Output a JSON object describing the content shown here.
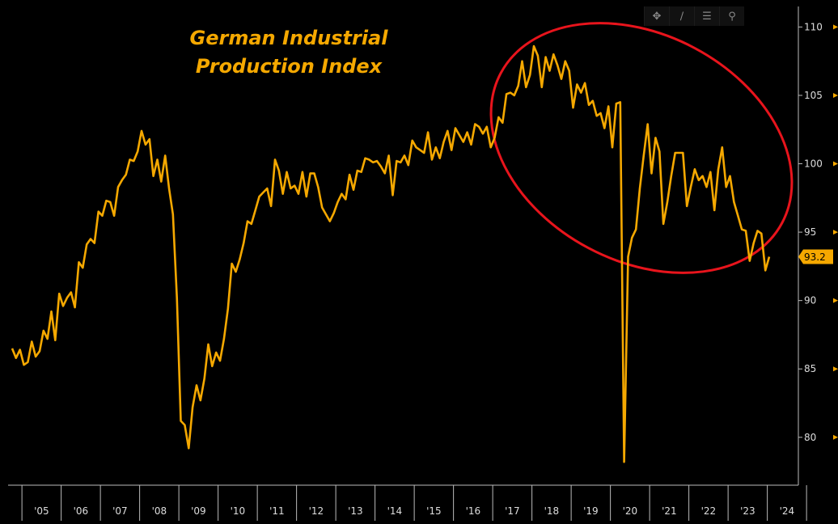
{
  "chart_data": {
    "type": "line",
    "title": "German Industrial Production Index",
    "title_lines": [
      "German Industrial",
      "Production Index"
    ],
    "xlabel": "",
    "ylabel": "",
    "ylim": [
      76.5,
      111.5
    ],
    "xlim": [
      2004.75,
      2024.75
    ],
    "y_ticks": [
      80,
      85,
      90,
      95,
      100,
      105,
      110
    ],
    "x_tick_labels": [
      "'05",
      "'06",
      "'07",
      "'08",
      "'09",
      "'10",
      "'11",
      "'12",
      "'13",
      "'14",
      "'15",
      "'16",
      "'17",
      "'18",
      "'19",
      "'20",
      "'21",
      "'22",
      "'23",
      "'24"
    ],
    "last_value_label": "93.2",
    "line_color": "#f5a800",
    "annotation": {
      "type": "ellipse",
      "color": "#e8141c",
      "description": "highlights decline since 2018"
    },
    "series": [
      {
        "name": "German Industrial Production Index",
        "points": [
          [
            2004.75,
            86.5
          ],
          [
            2004.85,
            85.8
          ],
          [
            2004.95,
            86.4
          ],
          [
            2005.05,
            85.3
          ],
          [
            2005.15,
            85.5
          ],
          [
            2005.25,
            87.0
          ],
          [
            2005.35,
            85.9
          ],
          [
            2005.45,
            86.3
          ],
          [
            2005.55,
            87.8
          ],
          [
            2005.65,
            87.2
          ],
          [
            2005.75,
            89.2
          ],
          [
            2005.85,
            87.1
          ],
          [
            2005.95,
            90.5
          ],
          [
            2006.05,
            89.6
          ],
          [
            2006.15,
            90.2
          ],
          [
            2006.25,
            90.6
          ],
          [
            2006.35,
            89.5
          ],
          [
            2006.45,
            92.8
          ],
          [
            2006.55,
            92.4
          ],
          [
            2006.65,
            94.1
          ],
          [
            2006.75,
            94.5
          ],
          [
            2006.85,
            94.2
          ],
          [
            2006.95,
            96.5
          ],
          [
            2007.05,
            96.2
          ],
          [
            2007.15,
            97.3
          ],
          [
            2007.25,
            97.2
          ],
          [
            2007.35,
            96.2
          ],
          [
            2007.45,
            98.3
          ],
          [
            2007.55,
            98.8
          ],
          [
            2007.65,
            99.2
          ],
          [
            2007.75,
            100.3
          ],
          [
            2007.85,
            100.2
          ],
          [
            2007.95,
            100.9
          ],
          [
            2008.05,
            102.4
          ],
          [
            2008.15,
            101.4
          ],
          [
            2008.25,
            101.8
          ],
          [
            2008.35,
            99.1
          ],
          [
            2008.45,
            100.3
          ],
          [
            2008.55,
            98.7
          ],
          [
            2008.65,
            100.6
          ],
          [
            2008.75,
            98.2
          ],
          [
            2008.85,
            96.3
          ],
          [
            2008.95,
            90.2
          ],
          [
            2009.05,
            81.2
          ],
          [
            2009.15,
            80.9
          ],
          [
            2009.25,
            79.2
          ],
          [
            2009.35,
            82.2
          ],
          [
            2009.45,
            83.8
          ],
          [
            2009.55,
            82.7
          ],
          [
            2009.65,
            84.3
          ],
          [
            2009.75,
            86.8
          ],
          [
            2009.85,
            85.2
          ],
          [
            2009.95,
            86.2
          ],
          [
            2010.05,
            85.6
          ],
          [
            2010.15,
            87.2
          ],
          [
            2010.25,
            89.4
          ],
          [
            2010.35,
            92.7
          ],
          [
            2010.45,
            92.1
          ],
          [
            2010.55,
            93.0
          ],
          [
            2010.65,
            94.2
          ],
          [
            2010.75,
            95.8
          ],
          [
            2010.85,
            95.6
          ],
          [
            2010.95,
            96.6
          ],
          [
            2011.05,
            97.6
          ],
          [
            2011.15,
            97.9
          ],
          [
            2011.25,
            98.2
          ],
          [
            2011.35,
            96.9
          ],
          [
            2011.45,
            100.3
          ],
          [
            2011.55,
            99.5
          ],
          [
            2011.65,
            97.8
          ],
          [
            2011.75,
            99.4
          ],
          [
            2011.85,
            98.2
          ],
          [
            2011.95,
            98.4
          ],
          [
            2012.05,
            97.8
          ],
          [
            2012.15,
            99.4
          ],
          [
            2012.25,
            97.6
          ],
          [
            2012.35,
            99.3
          ],
          [
            2012.45,
            99.3
          ],
          [
            2012.55,
            98.3
          ],
          [
            2012.65,
            96.8
          ],
          [
            2012.75,
            96.3
          ],
          [
            2012.85,
            95.8
          ],
          [
            2012.95,
            96.4
          ],
          [
            2013.05,
            97.2
          ],
          [
            2013.15,
            97.8
          ],
          [
            2013.25,
            97.4
          ],
          [
            2013.35,
            99.2
          ],
          [
            2013.45,
            98.1
          ],
          [
            2013.55,
            99.5
          ],
          [
            2013.65,
            99.4
          ],
          [
            2013.75,
            100.4
          ],
          [
            2013.85,
            100.3
          ],
          [
            2013.95,
            100.1
          ],
          [
            2014.05,
            100.2
          ],
          [
            2014.15,
            99.8
          ],
          [
            2014.25,
            99.3
          ],
          [
            2014.35,
            100.6
          ],
          [
            2014.45,
            97.7
          ],
          [
            2014.55,
            100.2
          ],
          [
            2014.65,
            100.1
          ],
          [
            2014.75,
            100.6
          ],
          [
            2014.85,
            99.9
          ],
          [
            2014.95,
            101.7
          ],
          [
            2015.05,
            101.2
          ],
          [
            2015.15,
            101.0
          ],
          [
            2015.25,
            100.8
          ],
          [
            2015.35,
            102.3
          ],
          [
            2015.45,
            100.3
          ],
          [
            2015.55,
            101.2
          ],
          [
            2015.65,
            100.4
          ],
          [
            2015.75,
            101.6
          ],
          [
            2015.85,
            102.4
          ],
          [
            2015.95,
            101.0
          ],
          [
            2016.05,
            102.6
          ],
          [
            2016.15,
            102.1
          ],
          [
            2016.25,
            101.6
          ],
          [
            2016.35,
            102.3
          ],
          [
            2016.45,
            101.4
          ],
          [
            2016.55,
            102.9
          ],
          [
            2016.65,
            102.7
          ],
          [
            2016.75,
            102.2
          ],
          [
            2016.85,
            102.7
          ],
          [
            2016.95,
            101.2
          ],
          [
            2017.05,
            101.9
          ],
          [
            2017.15,
            103.4
          ],
          [
            2017.25,
            103.0
          ],
          [
            2017.35,
            105.1
          ],
          [
            2017.45,
            105.2
          ],
          [
            2017.55,
            105.0
          ],
          [
            2017.65,
            105.7
          ],
          [
            2017.75,
            107.5
          ],
          [
            2017.85,
            105.6
          ],
          [
            2017.95,
            106.5
          ],
          [
            2018.05,
            108.6
          ],
          [
            2018.15,
            107.9
          ],
          [
            2018.25,
            105.6
          ],
          [
            2018.35,
            107.8
          ],
          [
            2018.45,
            106.8
          ],
          [
            2018.55,
            108.0
          ],
          [
            2018.65,
            107.2
          ],
          [
            2018.75,
            106.2
          ],
          [
            2018.85,
            107.5
          ],
          [
            2018.95,
            106.8
          ],
          [
            2019.05,
            104.1
          ],
          [
            2019.15,
            105.8
          ],
          [
            2019.25,
            105.2
          ],
          [
            2019.35,
            105.9
          ],
          [
            2019.45,
            104.3
          ],
          [
            2019.55,
            104.6
          ],
          [
            2019.65,
            103.5
          ],
          [
            2019.75,
            103.7
          ],
          [
            2019.85,
            102.6
          ],
          [
            2019.95,
            104.2
          ],
          [
            2020.05,
            101.2
          ],
          [
            2020.15,
            104.4
          ],
          [
            2020.25,
            104.5
          ],
          [
            2020.35,
            78.2
          ],
          [
            2020.45,
            93.2
          ],
          [
            2020.55,
            94.6
          ],
          [
            2020.65,
            95.2
          ],
          [
            2020.75,
            98.2
          ],
          [
            2020.85,
            100.6
          ],
          [
            2020.95,
            102.9
          ],
          [
            2021.05,
            99.3
          ],
          [
            2021.15,
            101.9
          ],
          [
            2021.25,
            100.9
          ],
          [
            2021.35,
            95.6
          ],
          [
            2021.45,
            97.2
          ],
          [
            2021.55,
            99.1
          ],
          [
            2021.65,
            100.8
          ],
          [
            2021.75,
            100.8
          ],
          [
            2021.85,
            100.8
          ],
          [
            2021.95,
            96.9
          ],
          [
            2022.05,
            98.3
          ],
          [
            2022.15,
            99.6
          ],
          [
            2022.25,
            98.8
          ],
          [
            2022.35,
            99.1
          ],
          [
            2022.45,
            98.3
          ],
          [
            2022.55,
            99.4
          ],
          [
            2022.65,
            96.6
          ],
          [
            2022.75,
            99.6
          ],
          [
            2022.85,
            101.2
          ],
          [
            2022.95,
            98.3
          ],
          [
            2023.05,
            99.1
          ],
          [
            2023.15,
            97.2
          ],
          [
            2023.25,
            96.2
          ],
          [
            2023.35,
            95.2
          ],
          [
            2023.45,
            95.1
          ],
          [
            2023.55,
            92.9
          ],
          [
            2023.65,
            94.2
          ],
          [
            2023.75,
            95.1
          ],
          [
            2023.85,
            94.9
          ],
          [
            2023.95,
            92.2
          ],
          [
            2024.05,
            93.2
          ]
        ]
      }
    ]
  }
}
